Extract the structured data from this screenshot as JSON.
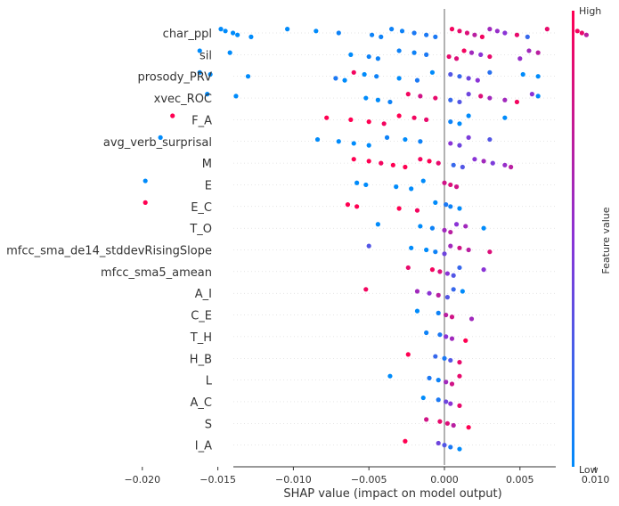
{
  "chart_data": {
    "type": "scatter",
    "subtype": "shap-beeswarm",
    "xlabel": "SHAP value (impact on model output)",
    "xlim": [
      -0.0215,
      0.0105
    ],
    "xticks": [
      -0.02,
      -0.015,
      -0.01,
      -0.005,
      0.0,
      0.005,
      0.01
    ],
    "xtick_labels": [
      "−0.020",
      "−0.015",
      "−0.010",
      "−0.005",
      "0.000",
      "0.005",
      "0.010"
    ],
    "colorbar": {
      "label": "Feature value",
      "high": "High",
      "low": "Low",
      "low_color": "#008bfb",
      "high_color": "#ff0052",
      "mid_color": "#8a33d6"
    },
    "features": [
      {
        "name": "char_ppl",
        "points": [
          {
            "x": -0.0148,
            "c": 0.0
          },
          {
            "x": -0.0145,
            "c": 0.0
          },
          {
            "x": -0.014,
            "c": 0.0
          },
          {
            "x": -0.0137,
            "c": 0.0
          },
          {
            "x": -0.0128,
            "c": 0.0
          },
          {
            "x": -0.0104,
            "c": 0.0
          },
          {
            "x": -0.0085,
            "c": 0.0
          },
          {
            "x": -0.007,
            "c": 0.05
          },
          {
            "x": -0.0048,
            "c": 0.05
          },
          {
            "x": -0.0042,
            "c": 0.05
          },
          {
            "x": -0.0035,
            "c": 0.05
          },
          {
            "x": -0.0028,
            "c": 0.05
          },
          {
            "x": -0.002,
            "c": 0.1
          },
          {
            "x": -0.0012,
            "c": 0.1
          },
          {
            "x": -0.0006,
            "c": 0.1
          },
          {
            "x": 0.0005,
            "c": 0.95
          },
          {
            "x": 0.001,
            "c": 0.9
          },
          {
            "x": 0.0015,
            "c": 0.85
          },
          {
            "x": 0.002,
            "c": 0.7
          },
          {
            "x": 0.0025,
            "c": 0.95
          },
          {
            "x": 0.003,
            "c": 0.6
          },
          {
            "x": 0.0035,
            "c": 0.55
          },
          {
            "x": 0.004,
            "c": 0.5
          },
          {
            "x": 0.0048,
            "c": 0.9
          },
          {
            "x": 0.0055,
            "c": 0.2
          },
          {
            "x": 0.0068,
            "c": 0.9
          },
          {
            "x": 0.0088,
            "c": 0.95
          },
          {
            "x": 0.0091,
            "c": 0.9
          },
          {
            "x": 0.0094,
            "c": 0.7
          }
        ]
      },
      {
        "name": "sil",
        "points": [
          {
            "x": -0.0162,
            "c": 0.0
          },
          {
            "x": -0.0142,
            "c": 0.0
          },
          {
            "x": -0.0062,
            "c": 0.0
          },
          {
            "x": -0.005,
            "c": 0.05
          },
          {
            "x": -0.0044,
            "c": 0.05
          },
          {
            "x": -0.003,
            "c": 0.05
          },
          {
            "x": -0.002,
            "c": 0.05
          },
          {
            "x": -0.0012,
            "c": 0.1
          },
          {
            "x": 0.0003,
            "c": 0.9
          },
          {
            "x": 0.0008,
            "c": 0.85
          },
          {
            "x": 0.0013,
            "c": 0.95
          },
          {
            "x": 0.0018,
            "c": 0.6
          },
          {
            "x": 0.0024,
            "c": 0.5
          },
          {
            "x": 0.003,
            "c": 0.9
          },
          {
            "x": 0.005,
            "c": 0.55
          },
          {
            "x": 0.0056,
            "c": 0.6
          },
          {
            "x": 0.0062,
            "c": 0.7
          }
        ]
      },
      {
        "name": "prosody_PRV",
        "points": [
          {
            "x": -0.0162,
            "c": 0.0
          },
          {
            "x": -0.0155,
            "c": 0.0
          },
          {
            "x": -0.013,
            "c": 0.0
          },
          {
            "x": -0.0072,
            "c": 0.1
          },
          {
            "x": -0.0066,
            "c": 0.0
          },
          {
            "x": -0.006,
            "c": 0.95
          },
          {
            "x": -0.0053,
            "c": 0.0
          },
          {
            "x": -0.0045,
            "c": 0.05
          },
          {
            "x": -0.003,
            "c": 0.0
          },
          {
            "x": -0.0018,
            "c": 0.1
          },
          {
            "x": -0.0008,
            "c": 0.0
          },
          {
            "x": 0.0004,
            "c": 0.3
          },
          {
            "x": 0.001,
            "c": 0.2
          },
          {
            "x": 0.0016,
            "c": 0.4
          },
          {
            "x": 0.0022,
            "c": 0.5
          },
          {
            "x": 0.003,
            "c": 0.15
          },
          {
            "x": 0.0052,
            "c": 0.0
          },
          {
            "x": 0.0062,
            "c": 0.0
          }
        ]
      },
      {
        "name": "xvec_ROC",
        "points": [
          {
            "x": -0.0157,
            "c": 0.0
          },
          {
            "x": -0.0138,
            "c": 0.0
          },
          {
            "x": -0.0052,
            "c": 0.0
          },
          {
            "x": -0.0044,
            "c": 0.0
          },
          {
            "x": -0.0036,
            "c": 0.05
          },
          {
            "x": -0.0024,
            "c": 0.95
          },
          {
            "x": -0.0016,
            "c": 0.8
          },
          {
            "x": -0.0006,
            "c": 0.9
          },
          {
            "x": 0.0004,
            "c": 0.2
          },
          {
            "x": 0.001,
            "c": 0.3
          },
          {
            "x": 0.0016,
            "c": 0.4
          },
          {
            "x": 0.0024,
            "c": 0.85
          },
          {
            "x": 0.003,
            "c": 0.6
          },
          {
            "x": 0.004,
            "c": 0.6
          },
          {
            "x": 0.0048,
            "c": 0.95
          },
          {
            "x": 0.0058,
            "c": 0.5
          },
          {
            "x": 0.0062,
            "c": 0.0
          }
        ]
      },
      {
        "name": "F_A",
        "points": [
          {
            "x": -0.018,
            "c": 1.0
          },
          {
            "x": -0.0078,
            "c": 1.0
          },
          {
            "x": -0.0062,
            "c": 1.0
          },
          {
            "x": -0.005,
            "c": 1.0
          },
          {
            "x": -0.004,
            "c": 0.95
          },
          {
            "x": -0.003,
            "c": 1.0
          },
          {
            "x": -0.002,
            "c": 0.95
          },
          {
            "x": -0.0012,
            "c": 0.9
          },
          {
            "x": 0.0004,
            "c": 0.05
          },
          {
            "x": 0.001,
            "c": 0.0
          },
          {
            "x": 0.0016,
            "c": 0.0
          },
          {
            "x": 0.004,
            "c": 0.0
          }
        ]
      },
      {
        "name": "avg_verb_surprisal",
        "points": [
          {
            "x": -0.0188,
            "c": 0.0
          },
          {
            "x": -0.0084,
            "c": 0.0
          },
          {
            "x": -0.007,
            "c": 0.0
          },
          {
            "x": -0.006,
            "c": 0.0
          },
          {
            "x": -0.005,
            "c": 0.0
          },
          {
            "x": -0.0038,
            "c": 0.05
          },
          {
            "x": -0.0026,
            "c": 0.0
          },
          {
            "x": -0.0016,
            "c": 0.05
          },
          {
            "x": 0.0004,
            "c": 0.5
          },
          {
            "x": 0.001,
            "c": 0.4
          },
          {
            "x": 0.0016,
            "c": 0.45
          },
          {
            "x": 0.003,
            "c": 0.3
          }
        ]
      },
      {
        "name": "M",
        "points": [
          {
            "x": -0.006,
            "c": 1.0
          },
          {
            "x": -0.005,
            "c": 1.0
          },
          {
            "x": -0.0042,
            "c": 0.95
          },
          {
            "x": -0.0034,
            "c": 1.0
          },
          {
            "x": -0.0026,
            "c": 1.0
          },
          {
            "x": -0.0016,
            "c": 0.95
          },
          {
            "x": -0.001,
            "c": 1.0
          },
          {
            "x": -0.0004,
            "c": 0.9
          },
          {
            "x": 0.0006,
            "c": 0.2
          },
          {
            "x": 0.0012,
            "c": 0.3
          },
          {
            "x": 0.002,
            "c": 0.5
          },
          {
            "x": 0.0026,
            "c": 0.6
          },
          {
            "x": 0.0032,
            "c": 0.45
          },
          {
            "x": 0.004,
            "c": 0.55
          },
          {
            "x": 0.0044,
            "c": 0.7
          }
        ]
      },
      {
        "name": "E",
        "points": [
          {
            "x": -0.0198,
            "c": 0.0
          },
          {
            "x": -0.0058,
            "c": 0.0
          },
          {
            "x": -0.0052,
            "c": 0.0
          },
          {
            "x": -0.0032,
            "c": 0.0
          },
          {
            "x": -0.0022,
            "c": 0.0
          },
          {
            "x": -0.0014,
            "c": 0.0
          },
          {
            "x": 0.0,
            "c": 0.8
          },
          {
            "x": 0.0004,
            "c": 0.85
          },
          {
            "x": 0.0008,
            "c": 0.8
          }
        ]
      },
      {
        "name": "E_C",
        "points": [
          {
            "x": -0.0198,
            "c": 1.0
          },
          {
            "x": -0.0064,
            "c": 1.0
          },
          {
            "x": -0.0058,
            "c": 1.0
          },
          {
            "x": -0.003,
            "c": 1.0
          },
          {
            "x": -0.0018,
            "c": 0.95
          },
          {
            "x": -0.0006,
            "c": 0.0
          },
          {
            "x": 0.0001,
            "c": 0.1
          },
          {
            "x": 0.0004,
            "c": 0.05
          },
          {
            "x": 0.001,
            "c": 0.0
          }
        ]
      },
      {
        "name": "T_O",
        "points": [
          {
            "x": -0.0044,
            "c": 0.0
          },
          {
            "x": -0.0016,
            "c": 0.0
          },
          {
            "x": -0.0008,
            "c": 0.05
          },
          {
            "x": 0.0,
            "c": 0.6
          },
          {
            "x": 0.0004,
            "c": 0.7
          },
          {
            "x": 0.0008,
            "c": 0.5
          },
          {
            "x": 0.0014,
            "c": 0.6
          },
          {
            "x": 0.0026,
            "c": 0.0
          }
        ]
      },
      {
        "name": "mfcc_sma_de14_stddevRisingSlope",
        "points": [
          {
            "x": -0.005,
            "c": 0.3
          },
          {
            "x": -0.0022,
            "c": 0.0
          },
          {
            "x": -0.0012,
            "c": 0.0
          },
          {
            "x": -0.0006,
            "c": 0.05
          },
          {
            "x": 0.0,
            "c": 0.4
          },
          {
            "x": 0.0004,
            "c": 0.6
          },
          {
            "x": 0.001,
            "c": 0.8
          },
          {
            "x": 0.0016,
            "c": 0.7
          },
          {
            "x": 0.003,
            "c": 0.85
          }
        ]
      },
      {
        "name": "mfcc_sma5_amean",
        "points": [
          {
            "x": -0.0024,
            "c": 0.9
          },
          {
            "x": -0.0008,
            "c": 0.95
          },
          {
            "x": -0.0003,
            "c": 0.85
          },
          {
            "x": 0.0002,
            "c": 0.5
          },
          {
            "x": 0.0006,
            "c": 0.3
          },
          {
            "x": 0.001,
            "c": 0.2
          },
          {
            "x": 0.0026,
            "c": 0.5
          }
        ]
      },
      {
        "name": "A_I",
        "points": [
          {
            "x": -0.0052,
            "c": 0.95
          },
          {
            "x": -0.0018,
            "c": 0.6
          },
          {
            "x": -0.001,
            "c": 0.5
          },
          {
            "x": -0.0004,
            "c": 0.7
          },
          {
            "x": 0.0002,
            "c": 0.3
          },
          {
            "x": 0.0006,
            "c": 0.2
          },
          {
            "x": 0.0012,
            "c": 0.0
          }
        ]
      },
      {
        "name": "C_E",
        "points": [
          {
            "x": -0.0018,
            "c": 0.0
          },
          {
            "x": -0.0004,
            "c": 0.05
          },
          {
            "x": 0.0001,
            "c": 0.7
          },
          {
            "x": 0.0005,
            "c": 0.8
          },
          {
            "x": 0.0018,
            "c": 0.6
          }
        ]
      },
      {
        "name": "T_H",
        "points": [
          {
            "x": -0.0012,
            "c": 0.05
          },
          {
            "x": -0.0003,
            "c": 0.1
          },
          {
            "x": 0.0001,
            "c": 0.5
          },
          {
            "x": 0.0005,
            "c": 0.6
          },
          {
            "x": 0.0014,
            "c": 1.0
          }
        ]
      },
      {
        "name": "H_B",
        "points": [
          {
            "x": -0.0024,
            "c": 1.0
          },
          {
            "x": -0.0006,
            "c": 0.2
          },
          {
            "x": 0.0,
            "c": 0.1
          },
          {
            "x": 0.0004,
            "c": 0.3
          },
          {
            "x": 0.001,
            "c": 0.9
          }
        ]
      },
      {
        "name": "L",
        "points": [
          {
            "x": -0.0036,
            "c": 0.0
          },
          {
            "x": -0.001,
            "c": 0.1
          },
          {
            "x": -0.0004,
            "c": 0.05
          },
          {
            "x": 0.0001,
            "c": 0.6
          },
          {
            "x": 0.0005,
            "c": 0.8
          },
          {
            "x": 0.001,
            "c": 0.9
          }
        ]
      },
      {
        "name": "A_C",
        "points": [
          {
            "x": -0.0014,
            "c": 0.0
          },
          {
            "x": -0.0004,
            "c": 0.1
          },
          {
            "x": 0.0001,
            "c": 0.4
          },
          {
            "x": 0.0004,
            "c": 0.5
          },
          {
            "x": 0.001,
            "c": 0.9
          }
        ]
      },
      {
        "name": "S",
        "points": [
          {
            "x": -0.0012,
            "c": 0.8
          },
          {
            "x": -0.0003,
            "c": 0.9
          },
          {
            "x": 0.0002,
            "c": 0.85
          },
          {
            "x": 0.0006,
            "c": 0.7
          },
          {
            "x": 0.0016,
            "c": 1.0
          }
        ]
      },
      {
        "name": "I_A",
        "points": [
          {
            "x": -0.0026,
            "c": 1.0
          },
          {
            "x": -0.0004,
            "c": 0.4
          },
          {
            "x": 0.0,
            "c": 0.3
          },
          {
            "x": 0.0004,
            "c": 0.1
          },
          {
            "x": 0.001,
            "c": 0.0
          }
        ]
      }
    ]
  }
}
